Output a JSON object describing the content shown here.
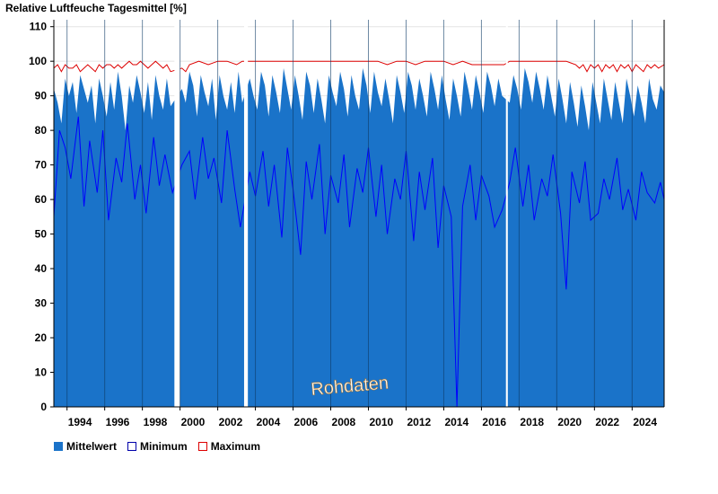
{
  "chart_data": {
    "type": "area",
    "title": "Relative Luftfeuche Tagesmittel [%]",
    "xlabel": "",
    "ylabel": "",
    "xlim": [
      1993.3,
      2025.7
    ],
    "ylim": [
      0,
      112
    ],
    "y_ticks": [
      0,
      10,
      20,
      30,
      40,
      50,
      60,
      70,
      80,
      90,
      100,
      110
    ],
    "x_ticks": [
      1994,
      1996,
      1998,
      2000,
      2002,
      2004,
      2006,
      2008,
      2010,
      2012,
      2014,
      2016,
      2018,
      2020,
      2022,
      2024
    ],
    "x_tick_labels": [
      "1994",
      "1996",
      "1998",
      "2000",
      "2002",
      "2004",
      "2006",
      "2008",
      "2010",
      "2012",
      "2014",
      "2016",
      "2018",
      "2020",
      "2022",
      "2024"
    ],
    "gaps": [
      [
        1999.7,
        2000.0
      ],
      [
        2003.4,
        2003.6
      ],
      [
        2017.3,
        2017.4
      ]
    ],
    "annotation": "Rohdaten",
    "grid": true,
    "legend_position": "bottom-left",
    "colors": {
      "mittelwert": "#1a73c9",
      "minimum": "#0000ff",
      "maximum": "#dd0000"
    },
    "series": [
      {
        "name": "Mittelwert",
        "x": [
          1993.3,
          1993.5,
          1993.7,
          1993.9,
          1994.1,
          1994.3,
          1994.5,
          1994.7,
          1994.9,
          1995.1,
          1995.3,
          1995.5,
          1995.7,
          1995.9,
          1996.1,
          1996.3,
          1996.5,
          1996.7,
          1996.9,
          1997.1,
          1997.3,
          1997.5,
          1997.7,
          1997.9,
          1998.1,
          1998.3,
          1998.5,
          1998.7,
          1998.9,
          1999.1,
          1999.3,
          1999.5,
          2000.1,
          2000.3,
          2000.5,
          2000.7,
          2000.9,
          2001.1,
          2001.3,
          2001.5,
          2001.7,
          2001.9,
          2002.1,
          2002.3,
          2002.5,
          2002.7,
          2002.9,
          2003.1,
          2003.3,
          2003.7,
          2003.9,
          2004.1,
          2004.3,
          2004.5,
          2004.7,
          2004.9,
          2005.1,
          2005.3,
          2005.5,
          2005.7,
          2005.9,
          2006.1,
          2006.3,
          2006.5,
          2006.7,
          2006.9,
          2007.1,
          2007.3,
          2007.5,
          2007.7,
          2007.9,
          2008.1,
          2008.3,
          2008.5,
          2008.7,
          2008.9,
          2009.1,
          2009.3,
          2009.5,
          2009.7,
          2009.9,
          2010.1,
          2010.3,
          2010.5,
          2010.7,
          2010.9,
          2011.1,
          2011.3,
          2011.5,
          2011.7,
          2011.9,
          2012.1,
          2012.3,
          2012.5,
          2012.7,
          2012.9,
          2013.1,
          2013.3,
          2013.5,
          2013.7,
          2013.9,
          2014.1,
          2014.3,
          2014.5,
          2014.7,
          2014.9,
          2015.1,
          2015.3,
          2015.5,
          2015.7,
          2015.9,
          2016.1,
          2016.3,
          2016.5,
          2016.7,
          2016.9,
          2017.1,
          2017.5,
          2017.7,
          2017.9,
          2018.1,
          2018.3,
          2018.5,
          2018.7,
          2018.9,
          2019.1,
          2019.3,
          2019.5,
          2019.7,
          2019.9,
          2020.1,
          2020.3,
          2020.5,
          2020.7,
          2020.9,
          2021.1,
          2021.3,
          2021.5,
          2021.7,
          2021.9,
          2022.1,
          2022.3,
          2022.5,
          2022.7,
          2022.9,
          2023.1,
          2023.3,
          2023.5,
          2023.7,
          2023.9,
          2024.1,
          2024.3,
          2024.5,
          2024.7,
          2024.9,
          2025.1,
          2025.3,
          2025.5,
          2025.7
        ],
        "y": [
          92,
          88,
          82,
          95,
          90,
          94,
          85,
          96,
          92,
          88,
          93,
          82,
          95,
          90,
          84,
          94,
          86,
          97,
          90,
          80,
          93,
          88,
          96,
          91,
          85,
          94,
          83,
          96,
          90,
          86,
          95,
          87,
          92,
          88,
          97,
          93,
          84,
          96,
          91,
          87,
          95,
          83,
          96,
          90,
          86,
          94,
          85,
          97,
          88,
          95,
          90,
          86,
          97,
          93,
          84,
          96,
          91,
          85,
          98,
          92,
          86,
          96,
          90,
          83,
          97,
          93,
          85,
          95,
          89,
          82,
          96,
          91,
          87,
          97,
          92,
          84,
          96,
          90,
          86,
          98,
          93,
          85,
          97,
          91,
          87,
          95,
          89,
          82,
          96,
          91,
          85,
          97,
          93,
          86,
          95,
          90,
          84,
          97,
          92,
          86,
          96,
          89,
          83,
          95,
          90,
          84,
          97,
          92,
          86,
          96,
          91,
          85,
          97,
          93,
          87,
          95,
          90,
          88,
          96,
          92,
          86,
          98,
          94,
          88,
          97,
          92,
          86,
          96,
          90,
          84,
          95,
          89,
          82,
          94,
          88,
          81,
          93,
          87,
          80,
          94,
          88,
          82,
          95,
          89,
          83,
          94,
          88,
          82,
          95,
          90,
          84,
          93,
          88,
          82,
          95,
          89,
          86,
          93,
          91
        ]
      },
      {
        "name": "Minimum",
        "x": [
          1993.3,
          1993.6,
          1993.9,
          1994.2,
          1994.6,
          1994.9,
          1995.2,
          1995.6,
          1995.9,
          1996.2,
          1996.6,
          1996.9,
          1997.2,
          1997.6,
          1997.9,
          1998.2,
          1998.6,
          1998.9,
          1999.2,
          1999.6,
          2000.1,
          2000.5,
          2000.8,
          2001.2,
          2001.5,
          2001.8,
          2002.2,
          2002.5,
          2002.9,
          2003.2,
          2003.7,
          2004.0,
          2004.4,
          2004.7,
          2005.0,
          2005.4,
          2005.7,
          2006.0,
          2006.4,
          2006.7,
          2007.0,
          2007.4,
          2007.7,
          2008.0,
          2008.4,
          2008.7,
          2009.0,
          2009.4,
          2009.7,
          2010.0,
          2010.4,
          2010.7,
          2011.0,
          2011.4,
          2011.7,
          2012.0,
          2012.4,
          2012.7,
          2013.0,
          2013.4,
          2013.7,
          2014.0,
          2014.4,
          2014.7,
          2015.0,
          2015.4,
          2015.7,
          2016.0,
          2016.4,
          2016.7,
          2017.1,
          2017.5,
          2017.8,
          2018.2,
          2018.5,
          2018.8,
          2019.2,
          2019.5,
          2019.8,
          2020.2,
          2020.5,
          2020.8,
          2021.2,
          2021.5,
          2021.8,
          2022.2,
          2022.5,
          2022.8,
          2023.2,
          2023.5,
          2023.8,
          2024.2,
          2024.5,
          2024.8,
          2025.2,
          2025.5,
          2025.7
        ],
        "y": [
          55,
          80,
          75,
          66,
          84,
          58,
          77,
          62,
          80,
          54,
          72,
          65,
          82,
          60,
          70,
          56,
          78,
          64,
          73,
          62,
          70,
          74,
          60,
          78,
          66,
          72,
          59,
          80,
          63,
          52,
          68,
          61,
          74,
          58,
          70,
          49,
          75,
          63,
          44,
          71,
          60,
          76,
          50,
          67,
          59,
          73,
          52,
          69,
          62,
          75,
          55,
          70,
          50,
          66,
          60,
          74,
          48,
          68,
          57,
          72,
          46,
          64,
          55,
          0,
          58,
          70,
          54,
          67,
          61,
          52,
          57,
          65,
          75,
          58,
          70,
          54,
          66,
          61,
          73,
          56,
          34,
          68,
          59,
          71,
          54,
          56,
          66,
          60,
          72,
          57,
          63,
          54,
          68,
          62,
          59,
          65,
          60
        ]
      },
      {
        "name": "Maximum",
        "x": [
          1993.3,
          1993.5,
          1993.7,
          1993.9,
          1994.1,
          1994.3,
          1994.5,
          1994.7,
          1994.9,
          1995.1,
          1995.3,
          1995.5,
          1995.7,
          1995.9,
          1996.1,
          1996.3,
          1996.5,
          1996.7,
          1996.9,
          1997.1,
          1997.3,
          1997.5,
          1997.7,
          1997.9,
          1998.1,
          1998.3,
          1998.5,
          1998.7,
          1998.9,
          1999.1,
          1999.3,
          1999.5,
          2000.1,
          2000.3,
          2000.5,
          2001.0,
          2001.5,
          2002.0,
          2002.5,
          2003.0,
          2003.3,
          2003.7,
          2004.5,
          2005.5,
          2006.5,
          2007.5,
          2008.5,
          2009.5,
          2010.5,
          2011.0,
          2011.5,
          2012.0,
          2012.5,
          2013.0,
          2013.5,
          2014.0,
          2014.5,
          2015.0,
          2015.5,
          2016.0,
          2016.5,
          2017.2,
          2017.5,
          2018.5,
          2019.5,
          2020.5,
          2021.0,
          2021.2,
          2021.4,
          2021.6,
          2021.8,
          2022.0,
          2022.2,
          2022.4,
          2022.6,
          2022.8,
          2023.0,
          2023.2,
          2023.4,
          2023.6,
          2023.8,
          2024.0,
          2024.2,
          2024.4,
          2024.6,
          2024.8,
          2025.0,
          2025.2,
          2025.4,
          2025.7
        ],
        "y": [
          98,
          99,
          97,
          99,
          98,
          98,
          99,
          97,
          98,
          99,
          98,
          97,
          99,
          98,
          99,
          99,
          98,
          99,
          98,
          99,
          100,
          99,
          99,
          100,
          99,
          98,
          99,
          100,
          99,
          98,
          99,
          97,
          98,
          97,
          99,
          100,
          99,
          100,
          100,
          99,
          100,
          100,
          100,
          100,
          100,
          100,
          100,
          100,
          100,
          99,
          100,
          100,
          99,
          100,
          100,
          100,
          99,
          100,
          99,
          99,
          99,
          99,
          100,
          100,
          100,
          100,
          99,
          98,
          99,
          97,
          99,
          98,
          99,
          97,
          99,
          98,
          99,
          97,
          99,
          98,
          99,
          97,
          99,
          98,
          97,
          99,
          98,
          99,
          98,
          99
        ]
      }
    ]
  }
}
